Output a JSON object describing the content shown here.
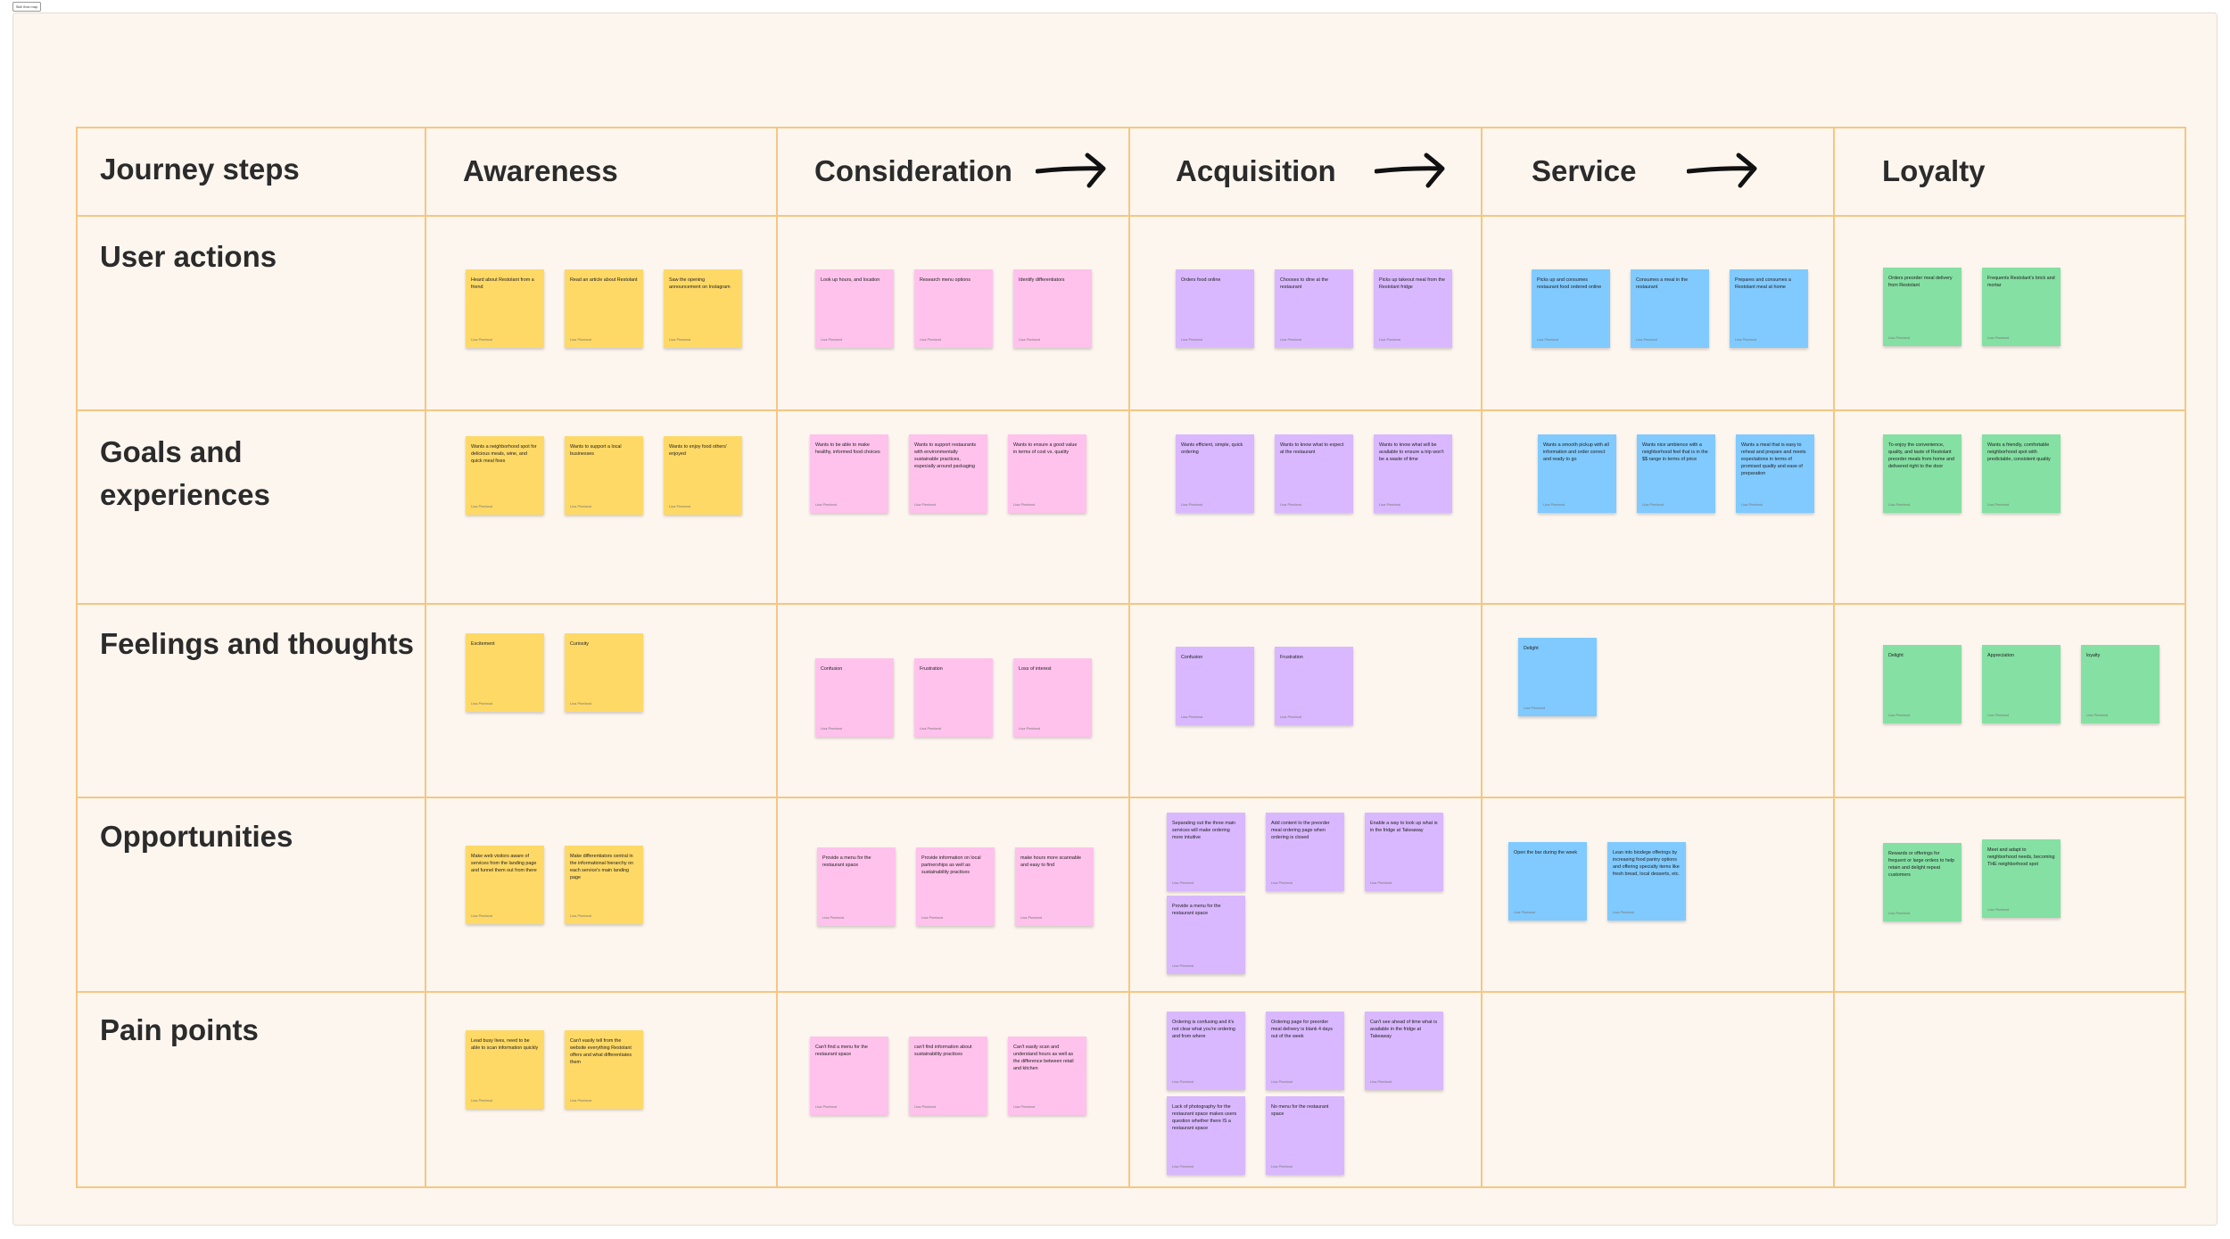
{
  "frame_label": "Skill flow map",
  "note_author": "Lisa Pineland",
  "colors": {
    "awareness": "#ffd966",
    "consideration": "#ffc2ec",
    "acquisition": "#d9b8ff",
    "service": "#80caff",
    "loyalty": "#85e0a3",
    "grid": "#f6c682"
  },
  "row_headers": {
    "journey_steps": "Journey steps",
    "user_actions": "User actions",
    "goals_line1": "Goals and",
    "goals_line2": "experiences",
    "feelings": "Feelings and thoughts",
    "opportunities": "Opportunities",
    "pain_points": "Pain points"
  },
  "stages": {
    "awareness": "Awareness",
    "consideration": "Consideration",
    "acquisition": "Acquisition",
    "service": "Service",
    "loyalty": "Loyalty"
  },
  "notes": {
    "ua_aw_1": "Heard about Restolant from a friend",
    "ua_aw_2": "Read an article about Restolant",
    "ua_aw_3": "Saw the opening announcement on Instagram",
    "ua_co_1": "Look up hours, and location",
    "ua_co_2": "Research menu options",
    "ua_co_3": "Identify differentiators",
    "ua_ac_1": "Orders food online",
    "ua_ac_2": "Chooses to dine at the restaurant",
    "ua_ac_3": "Picks up takeout meal from the Restolant fridge",
    "ua_se_1": "Picks up and consumes restaurant food ordered online",
    "ua_se_2": "Consumes a meal in the restaurant",
    "ua_se_3": "Prepares and consumes a Restolant meal at home",
    "ua_lo_1": "Orders preorder meal delivery from Restolant",
    "ua_lo_2": "Frequents Restolant's brick and mortar",
    "ge_aw_1": "Wants a neighborhood spot for delicious meals, wine, and quick meal fixes",
    "ge_aw_2": "Wants to support a local businesses",
    "ge_aw_3": "Wants to enjoy food others' enjoyed",
    "ge_co_1": "Wants to be able to make healthy, informed food choices",
    "ge_co_2": "Wants to support restaurants with environmentally sustainable practices, especially around packaging",
    "ge_co_3": "Wants to ensure a good value in terms of cost vs. quality",
    "ge_ac_1": "Wants efficient, simple, quick ordering",
    "ge_ac_2": "Wants to know what to expect at the restaurant",
    "ge_ac_3": "Wants to know what will be available to ensure a trip won't be a waste of time",
    "ge_se_1": "Wants a smooth pickup with all information and order correct and ready to go",
    "ge_se_2": "Wants nice ambience with a neighborhood feel that is in the $$ range in terms of price",
    "ge_se_3": "Wants a meal that is easy to reheat and prepare and meets expectations in terms of promised quality and ease of preparation",
    "ge_lo_1": "To enjoy the convenience, quality, and taste of Restolant preorder meals from home and delivered right to the door",
    "ge_lo_2": "Wants a friendly, comfortable neighborhood spot with predictable, consistent quality",
    "ft_aw_1": "Excitement",
    "ft_aw_2": "Curiosity",
    "ft_co_1": "Confusion",
    "ft_co_2": "Frustration",
    "ft_co_3": "Loss of interest",
    "ft_ac_1": "Confusion",
    "ft_ac_2": "Frustration",
    "ft_se_1": "Delight",
    "ft_lo_1": "Delight",
    "ft_lo_2": "Appreciation",
    "ft_lo_3": "loyalty",
    "op_aw_1": "Make web visitors aware of services from the landing page and funnel them out from there",
    "op_aw_2": "Make differentiators central in the informational hierarchy on each service's main landing page",
    "op_co_1": "Provide a menu for the restaurant space",
    "op_co_2": "Provide information on local partnerships as well as sustainability practices",
    "op_co_3": "make hours more scannable and easy to find",
    "op_ac_1": "Separating out the three main services will make ordering more intuitive",
    "op_ac_2": "Add content to the preorder meal ordering page when ordering is closed",
    "op_ac_3": "Enable a way to look up what is in the fridge at Takeaway",
    "op_ac_4": "Provide a menu for the restaurant space",
    "op_se_1": "Open the bar during the week",
    "op_se_2": "Lean into biodege offerings by increasing food pantry options and offering specialty items like fresh bread, local desserts, etc.",
    "op_lo_1": "Rewards or offerings for frequent or large orders to help retain and delight repeat customers",
    "op_lo_2": "Meet and adapt to neighborhood needs, becoming THE neighborhood spot",
    "pp_aw_1": "Lead busy lives, need to be able to scan information quickly",
    "pp_aw_2": "Can't easily tell from the website everything Restolant offers and what differentiates them",
    "pp_co_1": "Can't find a menu for the restaurant space",
    "pp_co_2": "can't find information about sustainability practices",
    "pp_co_3": "Can't easily scan and understand hours as well as the difference between retail and kitchen",
    "pp_ac_1": "Ordering is confusing and it's not clear what you're ordering and from where",
    "pp_ac_2": "Ordering page for preorder meal delivery is blank 4 days out of the week",
    "pp_ac_3": "Can't see ahead of time what is available in the fridge at Takeaway",
    "pp_ac_4": "Lack of photography for the restaurant space makes users question whether there IS a restaurant space",
    "pp_ac_5": "No menu for the restaurant space"
  }
}
